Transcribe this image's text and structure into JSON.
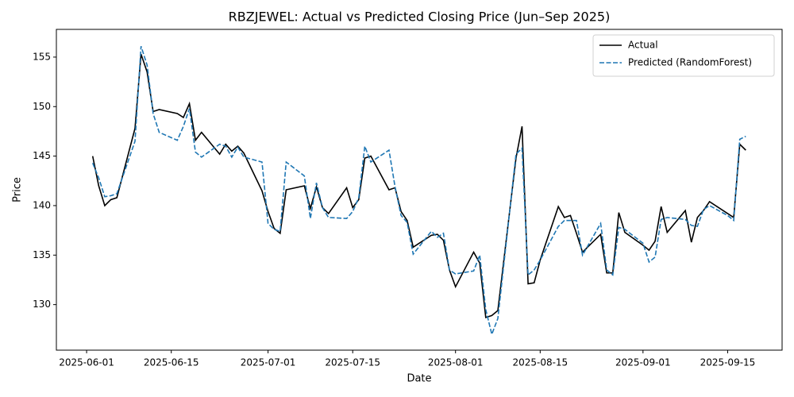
{
  "chart_data": {
    "type": "line",
    "title": "RBZJEWEL: Actual vs Predicted Closing Price (Jun–Sep 2025)",
    "x_label": "Date",
    "y_label": "Price",
    "x": [
      "2025-06-02",
      "2025-06-03",
      "2025-06-04",
      "2025-06-05",
      "2025-06-06",
      "2025-06-09",
      "2025-06-10",
      "2025-06-11",
      "2025-06-12",
      "2025-06-13",
      "2025-06-16",
      "2025-06-17",
      "2025-06-18",
      "2025-06-19",
      "2025-06-20",
      "2025-06-23",
      "2025-06-24",
      "2025-06-25",
      "2025-06-26",
      "2025-06-27",
      "2025-06-30",
      "2025-07-01",
      "2025-07-02",
      "2025-07-03",
      "2025-07-04",
      "2025-07-07",
      "2025-07-08",
      "2025-07-09",
      "2025-07-10",
      "2025-07-11",
      "2025-07-14",
      "2025-07-15",
      "2025-07-16",
      "2025-07-17",
      "2025-07-18",
      "2025-07-21",
      "2025-07-22",
      "2025-07-23",
      "2025-07-24",
      "2025-07-25",
      "2025-07-28",
      "2025-07-29",
      "2025-07-30",
      "2025-07-31",
      "2025-08-01",
      "2025-08-04",
      "2025-08-05",
      "2025-08-06",
      "2025-08-07",
      "2025-08-08",
      "2025-08-11",
      "2025-08-12",
      "2025-08-13",
      "2025-08-14",
      "2025-08-15",
      "2025-08-18",
      "2025-08-19",
      "2025-08-20",
      "2025-08-21",
      "2025-08-22",
      "2025-08-25",
      "2025-08-26",
      "2025-08-27",
      "2025-08-28",
      "2025-08-29",
      "2025-09-01",
      "2025-09-02",
      "2025-09-03",
      "2025-09-04",
      "2025-09-05",
      "2025-09-08",
      "2025-09-09",
      "2025-09-10",
      "2025-09-11",
      "2025-09-12",
      "2025-09-15",
      "2025-09-16",
      "2025-09-17",
      "2025-09-18"
    ],
    "series": [
      {
        "name": "Actual",
        "color": "#000000",
        "dash": false,
        "values": [
          145.0,
          142.0,
          140.0,
          140.6,
          140.8,
          147.8,
          155.3,
          153.5,
          149.5,
          149.7,
          149.3,
          148.9,
          150.3,
          146.6,
          147.4,
          145.2,
          146.2,
          145.5,
          146.0,
          145.3,
          141.5,
          139.4,
          137.7,
          137.2,
          141.6,
          142.0,
          139.7,
          141.9,
          139.8,
          139.2,
          141.8,
          139.8,
          140.6,
          144.8,
          145.0,
          141.6,
          141.8,
          139.4,
          138.5,
          135.8,
          137.0,
          137.1,
          136.5,
          133.5,
          131.8,
          135.3,
          134.2,
          128.7,
          128.9,
          129.4,
          144.8,
          148.0,
          132.1,
          132.2,
          134.5,
          139.9,
          138.8,
          139.0,
          137.2,
          135.3,
          137.1,
          133.2,
          133.2,
          139.3,
          137.3,
          136.0,
          135.5,
          136.4,
          139.9,
          137.3,
          139.5,
          136.3,
          138.8,
          139.5,
          140.4,
          139.2,
          138.8,
          146.2,
          145.6
        ]
      },
      {
        "name": "Predicted (RandomForest)",
        "color": "#1f77b4",
        "dash": true,
        "values": [
          144.3,
          142.8,
          140.9,
          141.0,
          141.2,
          146.5,
          156.1,
          154.2,
          149.3,
          147.4,
          146.6,
          148.0,
          149.8,
          145.4,
          144.9,
          146.2,
          146.0,
          144.9,
          145.9,
          144.9,
          144.4,
          138.2,
          137.6,
          137.4,
          144.4,
          143.0,
          138.7,
          142.3,
          139.8,
          138.8,
          138.7,
          139.4,
          140.8,
          146.0,
          144.4,
          145.6,
          141.9,
          139.0,
          138.3,
          135.1,
          137.4,
          136.8,
          137.2,
          133.5,
          133.1,
          133.4,
          135.0,
          129.5,
          127.0,
          128.6,
          145.2,
          145.8,
          133.0,
          133.5,
          134.5,
          137.9,
          138.5,
          138.5,
          138.5,
          135.0,
          138.2,
          133.5,
          133.0,
          137.8,
          137.6,
          136.2,
          134.3,
          134.8,
          138.6,
          138.8,
          138.6,
          138.0,
          137.9,
          139.6,
          140.0,
          139.0,
          138.5,
          146.7,
          147.0
        ]
      }
    ],
    "xlim": [
      "2025-05-27",
      "2025-09-24"
    ],
    "xticks": [
      "2025-06-01",
      "2025-06-15",
      "2025-07-01",
      "2025-07-15",
      "2025-08-01",
      "2025-08-15",
      "2025-09-01",
      "2025-09-15"
    ],
    "ylim": [
      125.4,
      157.8
    ],
    "yticks": [
      130,
      135,
      140,
      145,
      150,
      155
    ],
    "grid": false,
    "legend": "upper right"
  }
}
